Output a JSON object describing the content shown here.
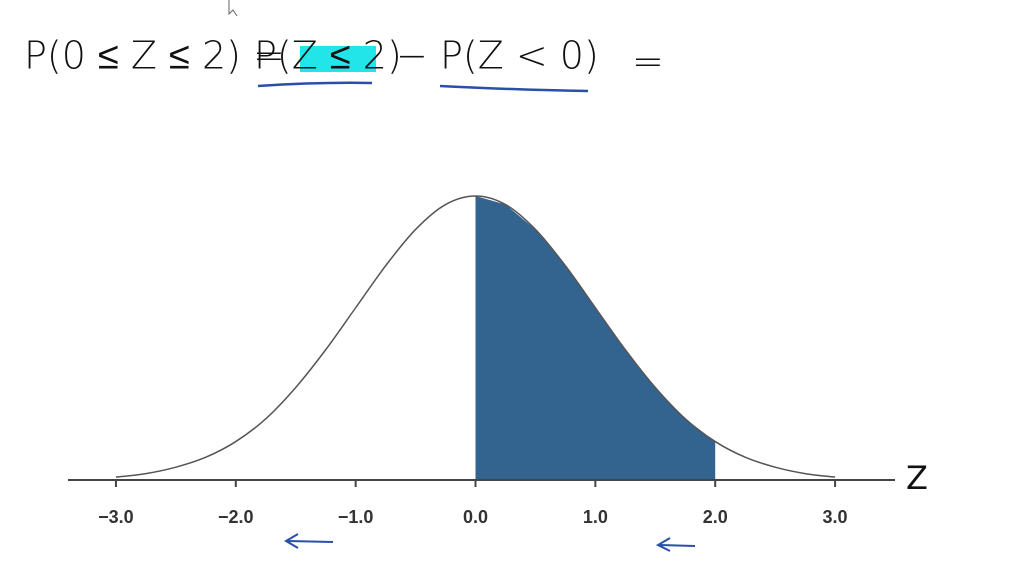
{
  "chart_data": {
    "type": "area",
    "annotations": [
      "P(0 ≤ Z ≤ 2) =",
      "P(Z ≤ 2)",
      "−",
      "P(Z < 0)",
      "="
    ],
    "xlabel": "Z",
    "x": [
      -3,
      -2.75,
      -2.5,
      -2.25,
      -2,
      -1.75,
      -1.5,
      -1.25,
      -1,
      -0.75,
      -0.5,
      -0.25,
      0,
      0.25,
      0.5,
      0.75,
      1,
      1.25,
      1.5,
      1.75,
      2,
      2.25,
      2.5,
      2.75,
      3
    ],
    "values": [
      0.004,
      0.009,
      0.018,
      0.032,
      0.054,
      0.086,
      0.13,
      0.183,
      0.242,
      0.301,
      0.352,
      0.387,
      0.399,
      0.387,
      0.352,
      0.301,
      0.242,
      0.183,
      0.13,
      0.086,
      0.054,
      0.032,
      0.018,
      0.009,
      0.004
    ],
    "shade": [
      0,
      2
    ],
    "color": "#33648f",
    "xlim": [
      -3.4,
      3.5
    ],
    "xticks": [
      {
        "value": -3,
        "label": "−3.0"
      },
      {
        "value": -2,
        "label": "−2.0"
      },
      {
        "value": -1,
        "label": "−1.0"
      },
      {
        "value": 0,
        "label": "0.0"
      },
      {
        "value": 1,
        "label": "1.0"
      },
      {
        "value": 2,
        "label": "2.0"
      },
      {
        "value": 3,
        "label": "3.0"
      }
    ]
  }
}
